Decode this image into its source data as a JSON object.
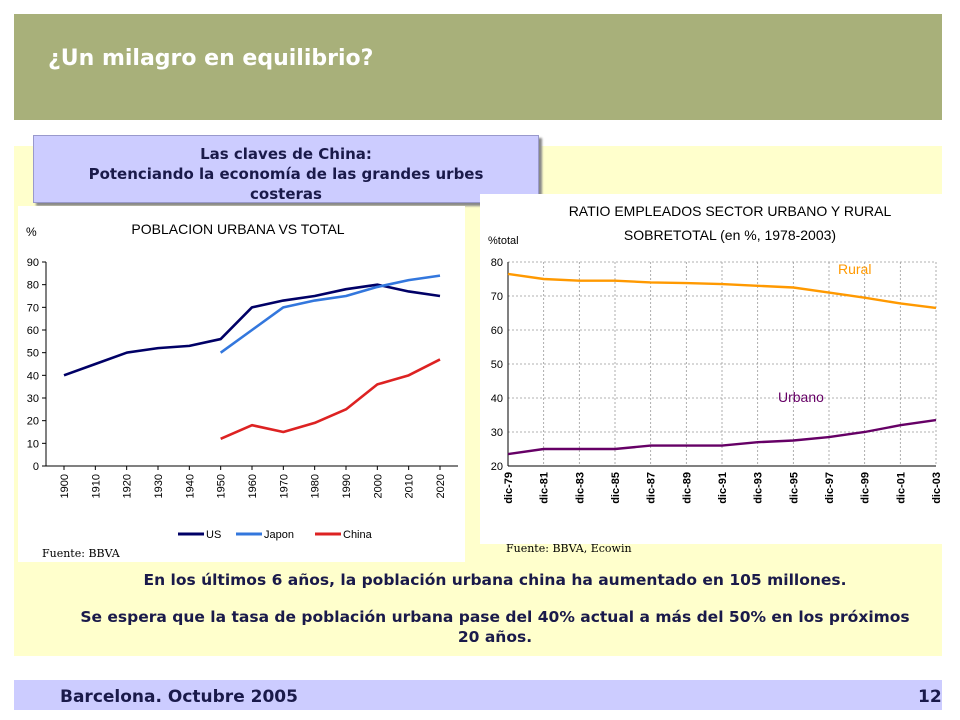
{
  "slide": {
    "title": "¿Un milagro en equilibrio?",
    "box_line1": "Las claves de China:",
    "box_line2": "Potenciando la economía de las grandes urbes costeras",
    "footer_left": "Barcelona. Octubre 2005",
    "page_number": "12",
    "paragraph1": "En los últimos 6 años, la población urbana china ha aumentado en 105 millones.",
    "paragraph2": "Se espera que la tasa de población urbana pase del 40% actual a más del 50% en los próximos 20 años.",
    "colors": {
      "header": "#a8b07a",
      "panel": "#ffffcc",
      "box": "#ccccff",
      "text": "#1a1a4a"
    }
  },
  "chart_data": [
    {
      "type": "line",
      "title": "POBLACION URBANA VS TOTAL",
      "ylabel": "%",
      "source": "Fuente: BBVA",
      "categories": [
        "1900",
        "1910",
        "1920",
        "1930",
        "1940",
        "1950",
        "1960",
        "1970",
        "1980",
        "1990",
        "2000",
        "2010",
        "2020"
      ],
      "ylim": [
        0,
        90
      ],
      "yticks": [
        0,
        10,
        20,
        30,
        40,
        50,
        60,
        70,
        80,
        90
      ],
      "grid": false,
      "legend": "bottom",
      "series": [
        {
          "name": "US",
          "color": "#000066",
          "values": [
            40,
            45,
            50,
            52,
            53,
            56,
            70,
            73,
            75,
            78,
            80,
            77,
            75
          ]
        },
        {
          "name": "Japon",
          "color": "#3377dd",
          "values": [
            null,
            null,
            null,
            null,
            null,
            50,
            60,
            70,
            73,
            75,
            79,
            82,
            84
          ]
        },
        {
          "name": "China",
          "color": "#dd2222",
          "values": [
            null,
            null,
            null,
            null,
            null,
            12,
            18,
            15,
            19,
            25,
            36,
            40,
            47
          ]
        }
      ]
    },
    {
      "type": "line",
      "title": "RATIO EMPLEADOS SECTOR URBANO Y RURAL SOBRETOTAL (en %, 1978-2003)",
      "ylabel": "%total",
      "source": "Fuente: BBVA, Ecowin",
      "categories": [
        "dic-79",
        "dic-81",
        "dic-83",
        "dic-85",
        "dic-87",
        "dic-89",
        "dic-91",
        "dic-93",
        "dic-95",
        "dic-97",
        "dic-99",
        "dic-01",
        "dic-03"
      ],
      "ylim": [
        20,
        80
      ],
      "yticks": [
        20,
        30,
        40,
        50,
        60,
        70,
        80
      ],
      "grid": true,
      "series": [
        {
          "name": "Rural",
          "color": "#ff9900",
          "values": [
            76.5,
            75,
            74.5,
            74.5,
            74,
            73.8,
            73.5,
            73,
            72.5,
            71,
            69.5,
            67.8,
            66.5
          ]
        },
        {
          "name": "Urbano",
          "color": "#660066",
          "values": [
            23.5,
            25,
            25,
            25,
            26,
            26,
            26,
            27,
            27.5,
            28.5,
            30,
            32,
            33.5
          ]
        }
      ]
    }
  ]
}
